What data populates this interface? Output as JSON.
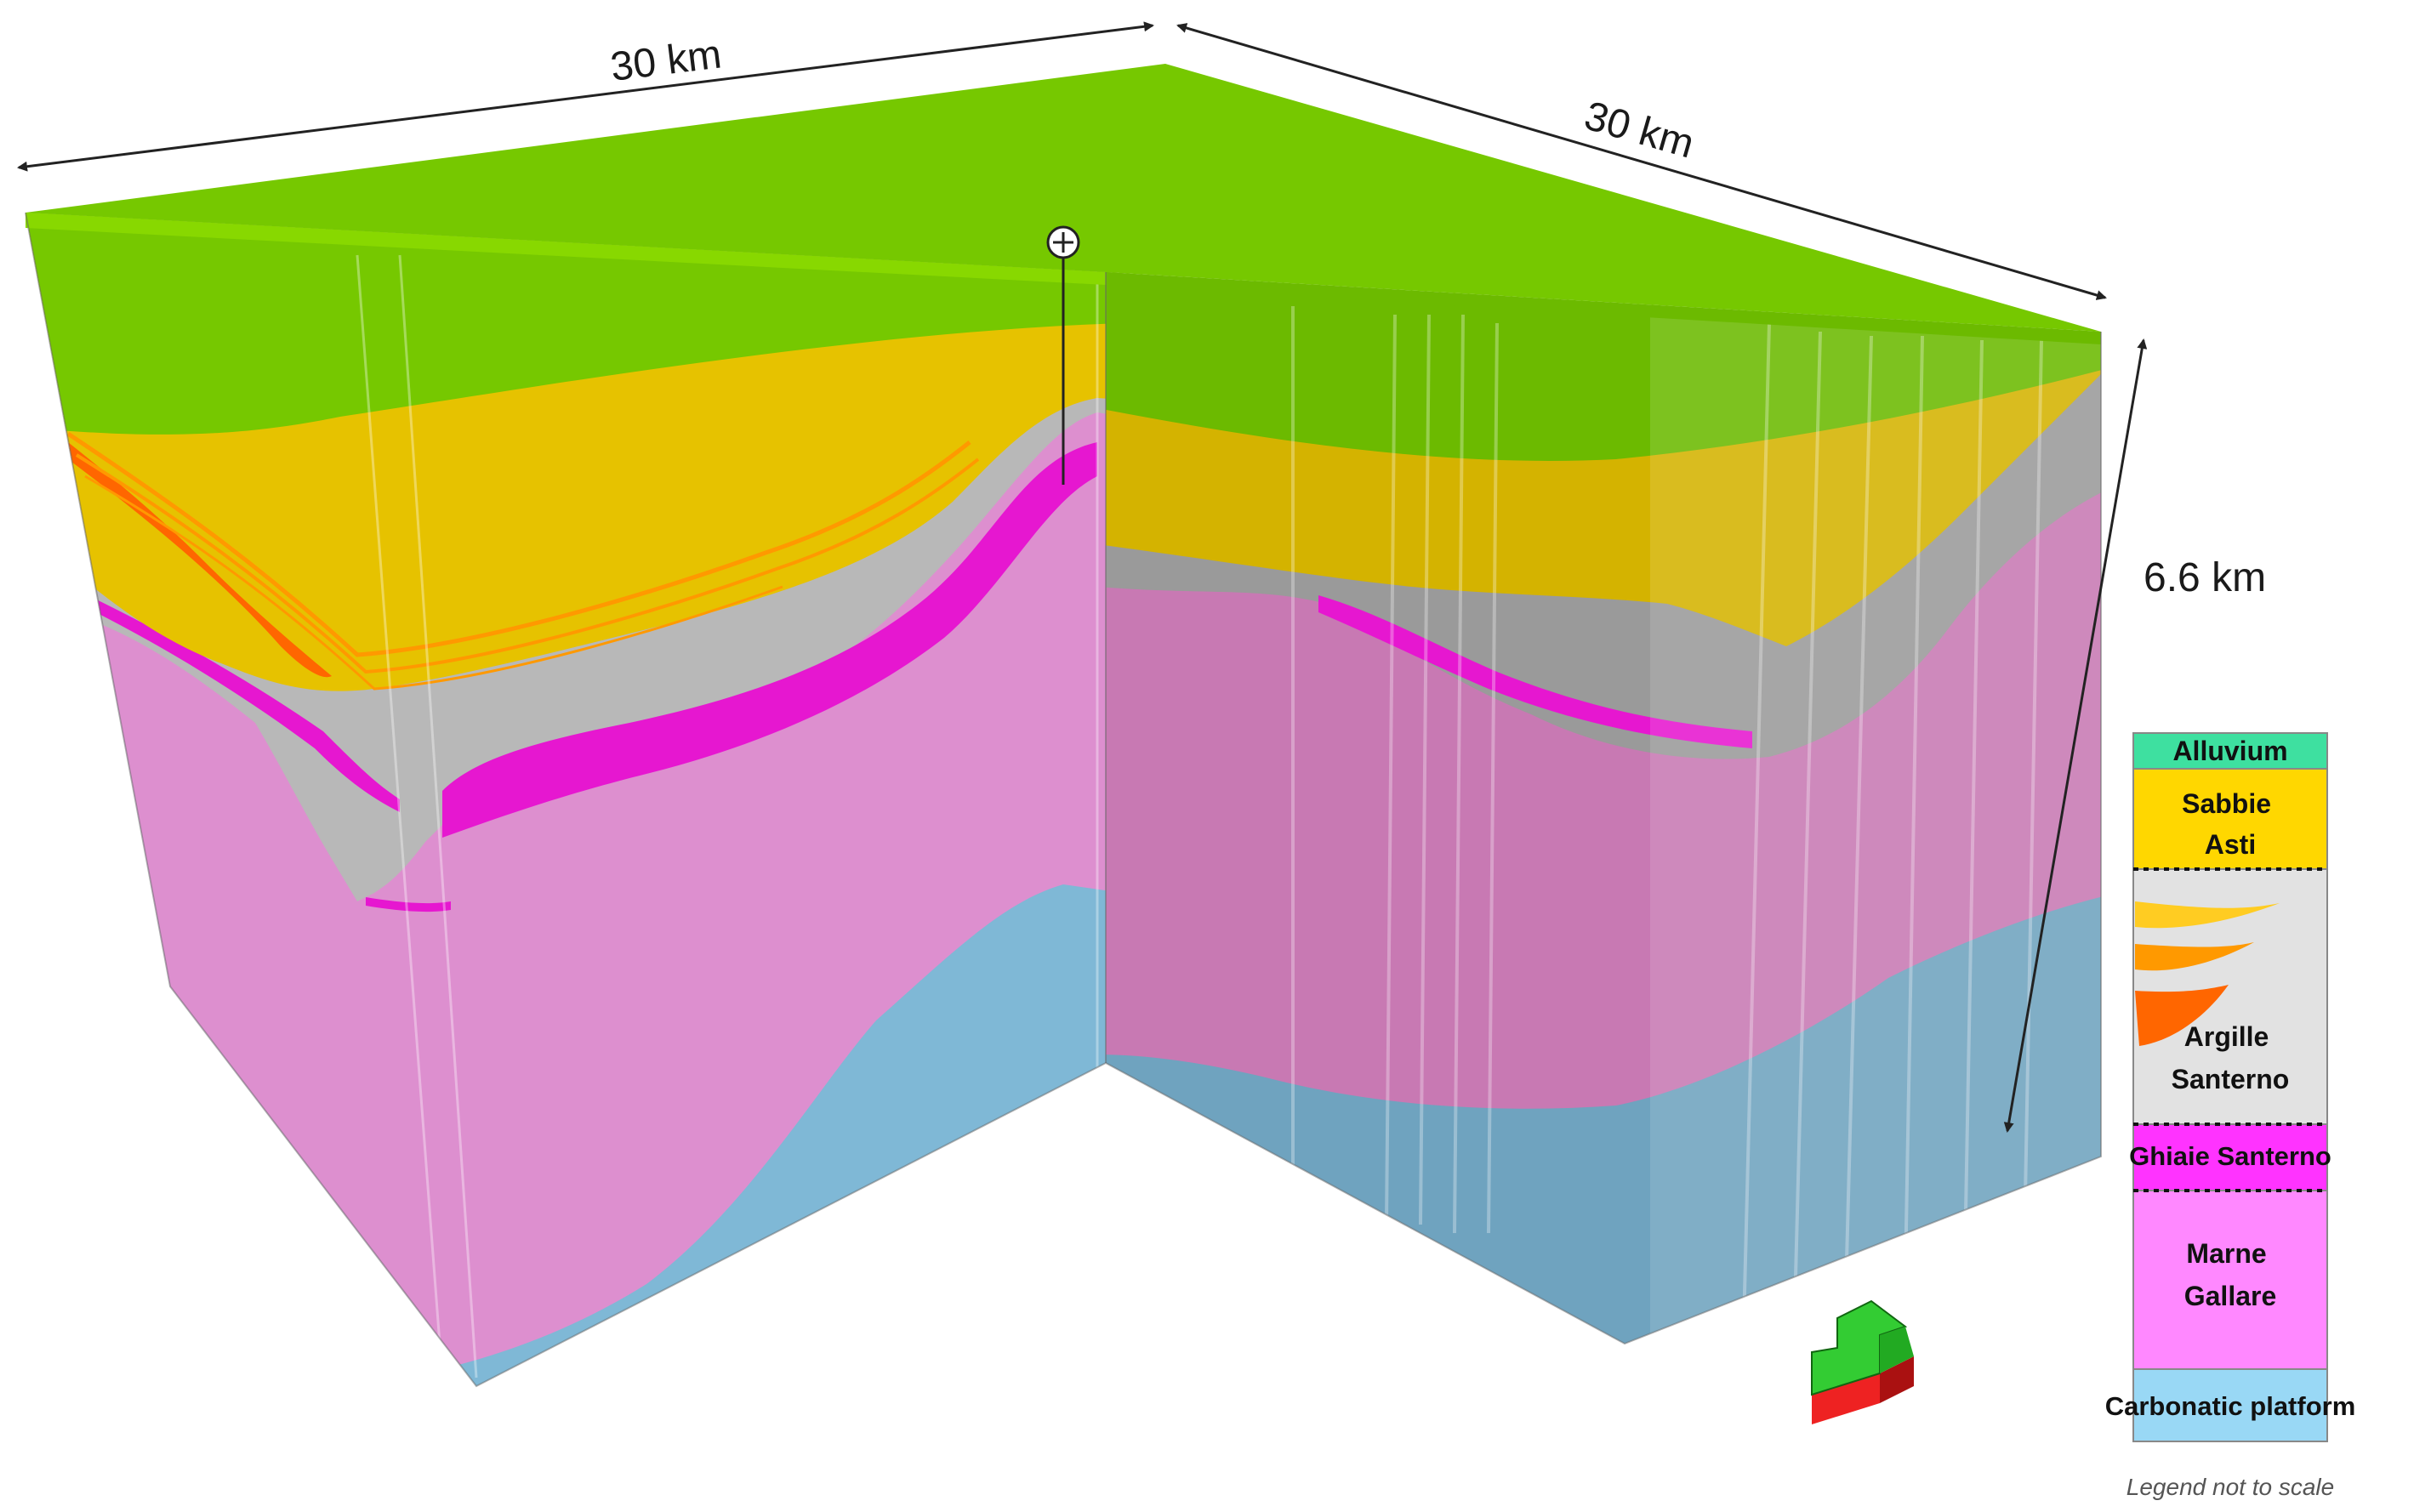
{
  "dimensions": {
    "left_width": "30 km",
    "right_width": "30 km",
    "depth": "6.6 km"
  },
  "legend": {
    "items": [
      {
        "label": "Alluvium",
        "color": "#3ee0a0"
      },
      {
        "label": "Sabbie Asti",
        "color": "#ffd700"
      },
      {
        "label": "Argille Santerno",
        "color": "#e2e2e2"
      },
      {
        "label": "Ghiaie Santerno",
        "color": "#ff33ff"
      },
      {
        "label": "Marne Gallare",
        "color": "#ff88ff"
      },
      {
        "label": "Carbonatic platform",
        "color": "#99d8f5"
      }
    ],
    "note": "Legend not to scale"
  },
  "colors": {
    "top_surface": "#76c800",
    "sabbie_asti": "#e6c200",
    "argille_santerno": "#b8b8b8",
    "ghiaie_santerno": "#e617d0",
    "marne_gallare": "#dd8fcf",
    "carbonatic_platform": "#7fb8d6",
    "orange_lens": "#ff6600",
    "north_arrow_top": "#33cc33",
    "north_arrow_base": "#ee2222"
  },
  "icons": {
    "well_marker": "crosshair-circle-icon",
    "north_arrow": "north-arrow-icon"
  }
}
